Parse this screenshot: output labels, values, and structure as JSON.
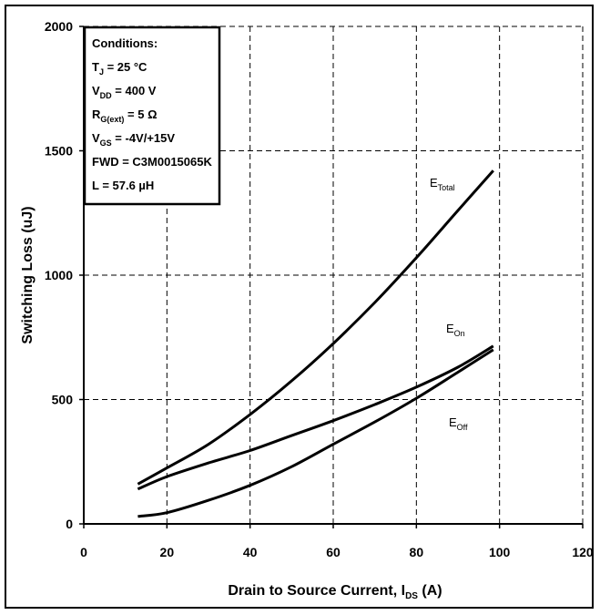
{
  "chart_data": {
    "type": "line",
    "xlabel": "Drain to Source Current, I",
    "xlabel_sub": "DS",
    "xlabel_tail": " (A)",
    "ylabel": "Switching Loss (uJ)",
    "xlim": [
      0,
      120
    ],
    "ylim": [
      0,
      2000
    ],
    "xticks": [
      "0",
      "20",
      "40",
      "60",
      "80",
      "100",
      "120"
    ],
    "yticks": [
      "0",
      "500",
      "1000",
      "1500",
      "2000"
    ],
    "grid": true,
    "series": [
      {
        "name": "E_Total",
        "label_main": "E",
        "label_sub": "Total",
        "x": [
          13,
          20,
          30,
          40,
          50,
          60,
          70,
          80,
          90,
          98.5
        ],
        "y": [
          160,
          225,
          320,
          440,
          575,
          725,
          890,
          1070,
          1260,
          1420
        ]
      },
      {
        "name": "E_On",
        "label_main": "E",
        "label_sub": "On",
        "x": [
          13,
          20,
          30,
          40,
          50,
          60,
          70,
          80,
          90,
          98.5
        ],
        "y": [
          140,
          190,
          245,
          295,
          355,
          415,
          480,
          550,
          630,
          715
        ]
      },
      {
        "name": "E_Off",
        "label_main": "E",
        "label_sub": "Off",
        "x": [
          13,
          20,
          30,
          40,
          50,
          60,
          70,
          80,
          90,
          98.5
        ],
        "y": [
          30,
          45,
          95,
          155,
          230,
          320,
          410,
          505,
          610,
          700
        ]
      }
    ]
  },
  "conditions": {
    "title": "Conditions:",
    "lines": [
      {
        "main": "T",
        "sub": "J",
        "rest": " = 25 °C"
      },
      {
        "main": "V",
        "sub": "DD",
        "rest": " = 400 V"
      },
      {
        "main": "R",
        "sub": "G(ext)",
        "rest": " = 5 Ω"
      },
      {
        "main": "V",
        "sub": "GS",
        "rest": " = -4V/+15V"
      },
      {
        "main": "FWD = C3M0015065K",
        "sub": "",
        "rest": ""
      },
      {
        "main": "L = 57.6 µH",
        "sub": "",
        "rest": ""
      }
    ]
  }
}
